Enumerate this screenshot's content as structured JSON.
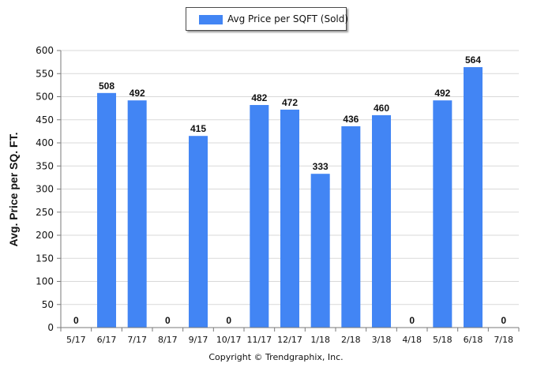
{
  "legend": {
    "label": "Avg Price per SQFT (Sold)",
    "color": "#4285f4"
  },
  "copyright": "Copyright © Trendgraphix, Inc.",
  "chart_data": {
    "type": "bar",
    "title": "",
    "xlabel": "",
    "ylabel": "Avg. Price per SQ. FT.",
    "ylim": [
      0,
      600
    ],
    "yticks": [
      0,
      50,
      100,
      150,
      200,
      250,
      300,
      350,
      400,
      450,
      500,
      550,
      600
    ],
    "grid": true,
    "legend_position": "top-center",
    "categories": [
      "5/17",
      "6/17",
      "7/17",
      "8/17",
      "9/17",
      "10/17",
      "11/17",
      "12/17",
      "1/18",
      "2/18",
      "3/18",
      "4/18",
      "5/18",
      "6/18",
      "7/18"
    ],
    "series": [
      {
        "name": "Avg Price per SQFT (Sold)",
        "values": [
          0,
          508,
          492,
          0,
          415,
          0,
          482,
          472,
          333,
          436,
          460,
          0,
          492,
          564,
          0
        ],
        "data_labels": [
          "0",
          "508",
          "492",
          "0",
          "415",
          "0",
          "482",
          "472",
          "333",
          "436",
          "460",
          "0",
          "492",
          "564",
          "0"
        ]
      }
    ],
    "colors": {
      "bar": "#4285f4",
      "grid": "#d9d9d9",
      "axis": "#7a7a7a"
    }
  }
}
